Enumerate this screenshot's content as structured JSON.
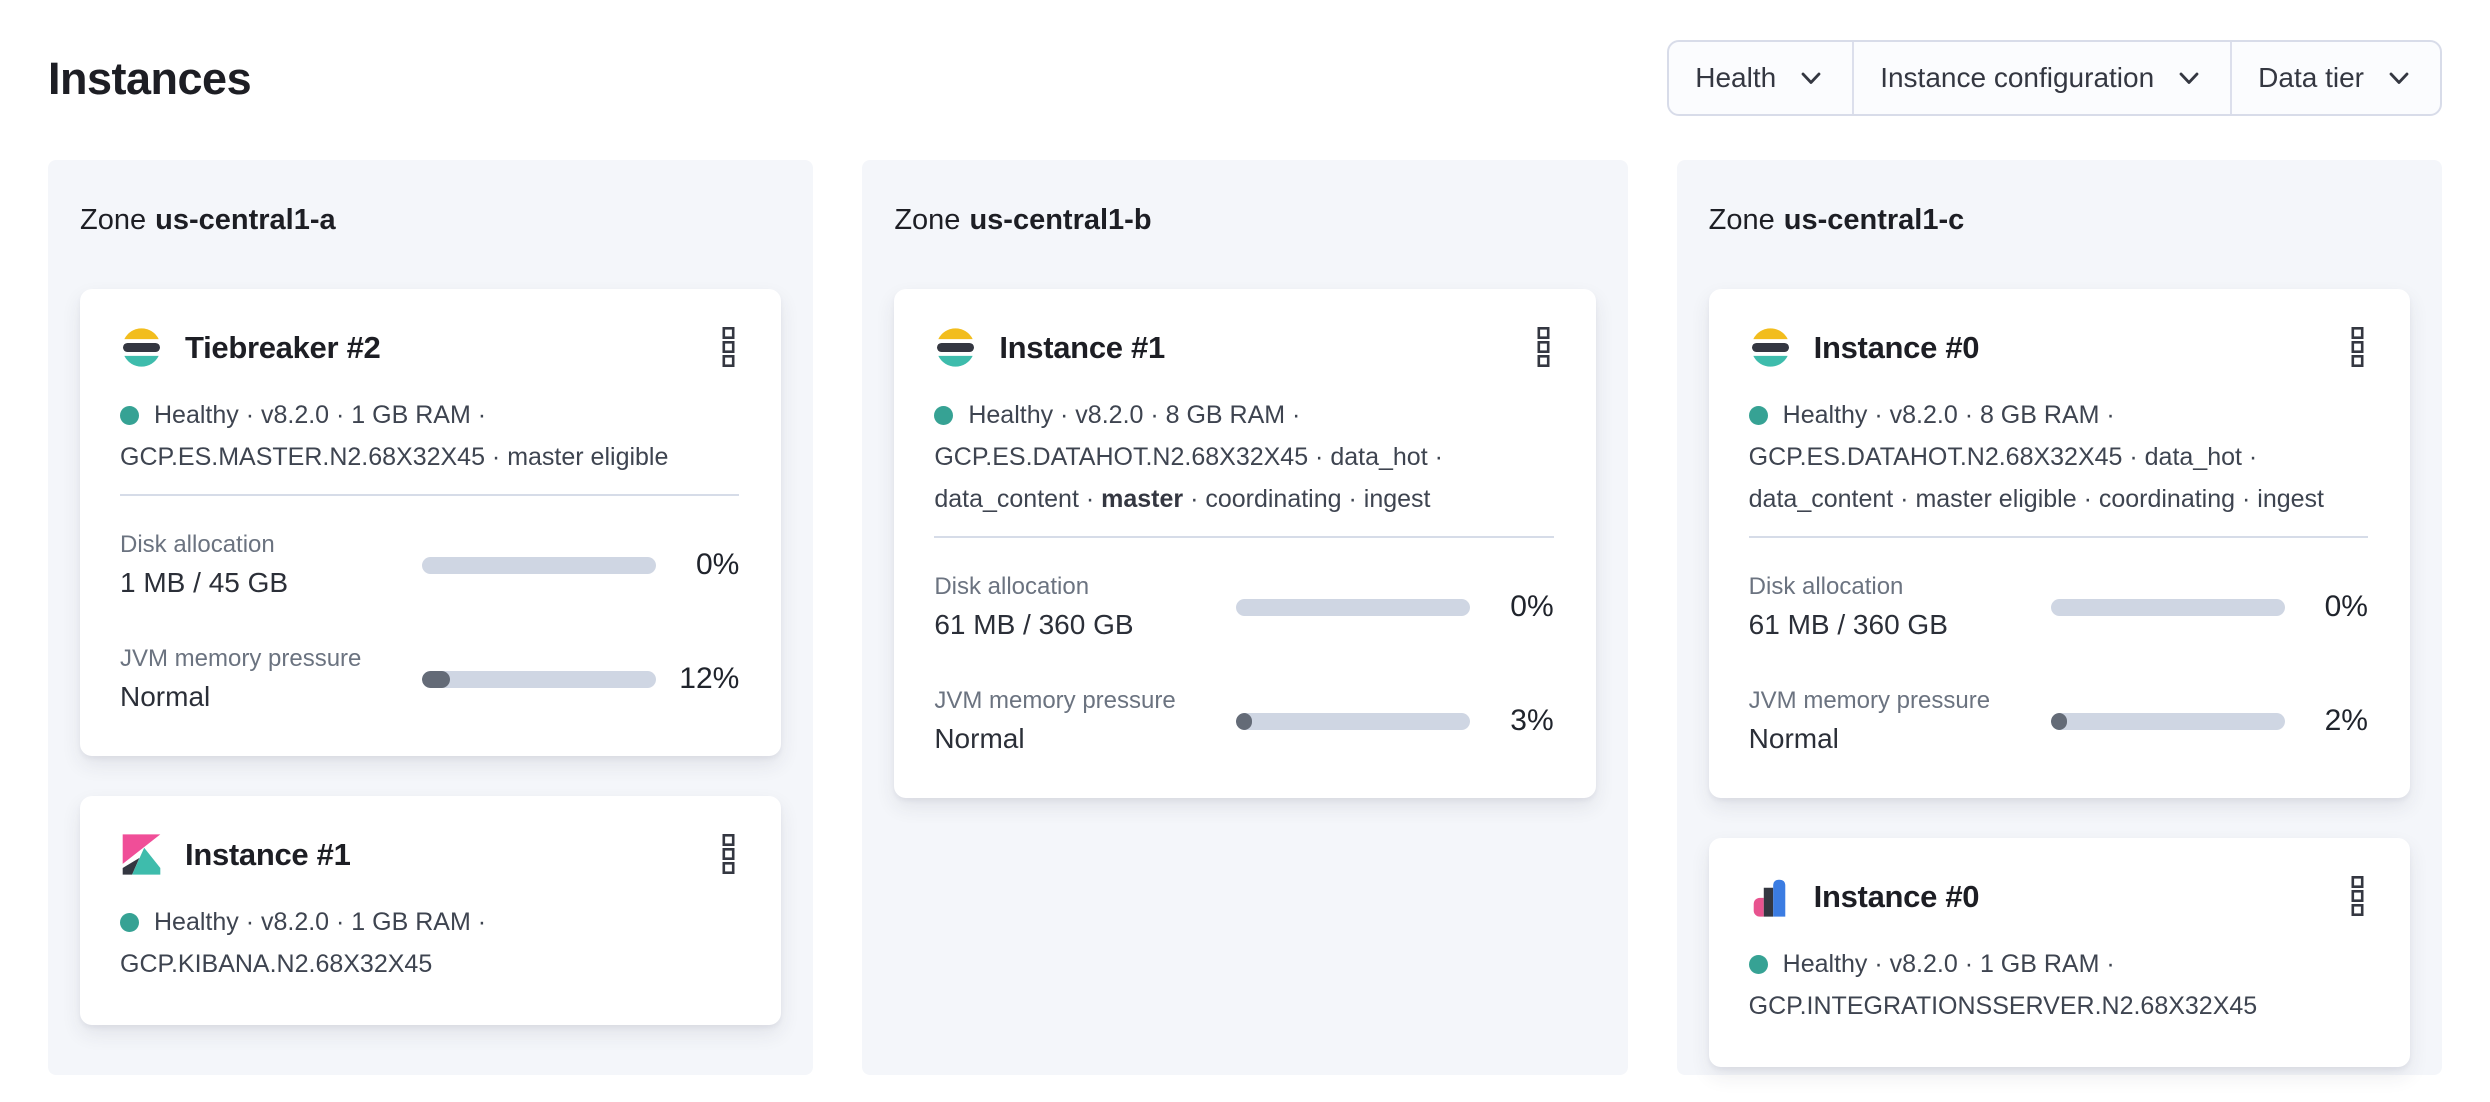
{
  "page": {
    "title": "Instances"
  },
  "filters": [
    {
      "label": "Health",
      "icon": "chevron-down-icon"
    },
    {
      "label": "Instance configuration",
      "icon": "chevron-down-icon"
    },
    {
      "label": "Data tier",
      "icon": "chevron-down-icon"
    }
  ],
  "colors": {
    "healthy_dot": "#36A294",
    "panel_bg": "#F4F6FA",
    "bar_track": "#CFD6E3",
    "bar_fill": "#646B77",
    "elastic_yellow": "#FEC514",
    "elastic_dark": "#343741",
    "elastic_teal": "#3EBCAC",
    "kibana_pink": "#F04E98",
    "integrations_blue": "#3B7CE2"
  },
  "icons": {
    "kebab": "boxes-vertical-kebab-icon",
    "es_logo": "elasticsearch-logo",
    "kibana_logo": "kibana-logo",
    "integrations_logo": "integrations-server-logo"
  },
  "zones": [
    {
      "label_prefix": "Zone",
      "name": "us-central1-a",
      "cards": [
        {
          "title": "Tiebreaker #2",
          "logo": "elasticsearch-logo",
          "meta_line1": "Healthy · v8.2.0 · 1 GB RAM ·",
          "meta_line2_pre": "GCP.ES.MASTER.N2.68X32X45 · master eligible",
          "meta_line2_bold": "",
          "meta_line2_post": "",
          "metrics": [
            {
              "label": "Disk allocation",
              "value": "1 MB / 45 GB",
              "percent": 0,
              "percent_label": "0%"
            },
            {
              "label": "JVM memory pressure",
              "value": "Normal",
              "percent": 12,
              "percent_label": "12%"
            }
          ]
        },
        {
          "title": "Instance #1",
          "logo": "kibana-logo",
          "meta_line1": "Healthy · v8.2.0 · 1 GB RAM ·",
          "meta_line2_pre": "GCP.KIBANA.N2.68X32X45",
          "meta_line2_bold": "",
          "meta_line2_post": ""
        }
      ]
    },
    {
      "label_prefix": "Zone",
      "name": "us-central1-b",
      "cards": [
        {
          "title": "Instance #1",
          "logo": "elasticsearch-logo",
          "meta_line1": "Healthy · v8.2.0 · 8 GB RAM ·",
          "meta_line2_pre": "GCP.ES.DATAHOT.N2.68X32X45 · data_hot ·",
          "meta_line2_bold": "",
          "meta_line2_post": "",
          "meta_line3_pre": "data_content · ",
          "meta_line3_bold": "master",
          "meta_line3_post": " · coordinating · ingest",
          "metrics": [
            {
              "label": "Disk allocation",
              "value": "61 MB / 360 GB",
              "percent": 0,
              "percent_label": "0%"
            },
            {
              "label": "JVM memory pressure",
              "value": "Normal",
              "percent": 3,
              "percent_label": "3%"
            }
          ]
        }
      ]
    },
    {
      "label_prefix": "Zone",
      "name": "us-central1-c",
      "cards": [
        {
          "title": "Instance #0",
          "logo": "elasticsearch-logo",
          "meta_line1": "Healthy · v8.2.0 · 8 GB RAM ·",
          "meta_line2_pre": "GCP.ES.DATAHOT.N2.68X32X45 · data_hot ·",
          "meta_line2_bold": "",
          "meta_line2_post": "",
          "meta_line3_pre": "data_content · master eligible · coordinating · ingest",
          "meta_line3_bold": "",
          "meta_line3_post": "",
          "metrics": [
            {
              "label": "Disk allocation",
              "value": "61 MB / 360 GB",
              "percent": 0,
              "percent_label": "0%"
            },
            {
              "label": "JVM memory pressure",
              "value": "Normal",
              "percent": 2,
              "percent_label": "2%"
            }
          ]
        },
        {
          "title": "Instance #0",
          "logo": "integrations-server-logo",
          "meta_line1": "Healthy · v8.2.0 · 1 GB RAM ·",
          "meta_line2_pre": "GCP.INTEGRATIONSSERVER.N2.68X32X45",
          "meta_line2_bold": "",
          "meta_line2_post": ""
        }
      ]
    }
  ]
}
